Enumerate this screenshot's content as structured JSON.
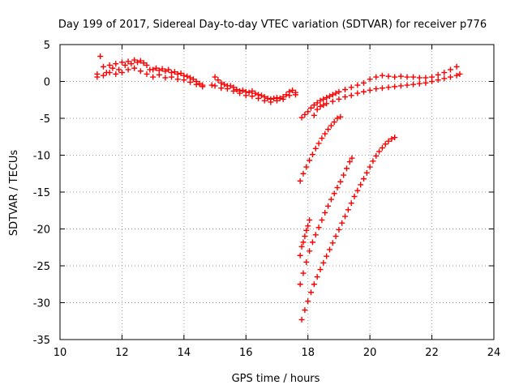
{
  "chart_data": {
    "type": "scatter",
    "title": "Day 199 of 2017, Sidereal Day-to-day VTEC variation (SDTVAR) for receiver p776",
    "xlabel": "GPS time / hours",
    "ylabel": "SDTVAR / TECUs",
    "xlim": [
      10,
      24
    ],
    "ylim": [
      -35,
      5
    ],
    "xticks": [
      10,
      12,
      14,
      16,
      18,
      20,
      22,
      24
    ],
    "yticks": [
      5,
      0,
      -5,
      -10,
      -15,
      -20,
      -25,
      -30,
      -35
    ],
    "xtick_labels": [
      "10",
      "12",
      "14",
      "16",
      "18",
      "20",
      "22",
      "24"
    ],
    "ytick_labels": [
      "5",
      "0",
      "-5",
      "-10",
      "-15",
      "-20",
      "-25",
      "-30",
      "-35"
    ],
    "grid": true,
    "marker": "plus",
    "color": "#ff0000",
    "series": [
      {
        "points": [
          [
            11.2,
            1.0
          ],
          [
            11.3,
            3.4
          ],
          [
            11.4,
            2.0
          ],
          [
            11.5,
            1.2
          ],
          [
            11.6,
            2.2
          ],
          [
            11.7,
            1.8
          ],
          [
            11.8,
            2.4
          ],
          [
            11.9,
            1.6
          ],
          [
            12.0,
            2.6
          ],
          [
            12.1,
            2.2
          ],
          [
            12.2,
            2.7
          ],
          [
            12.3,
            2.4
          ],
          [
            12.4,
            2.9
          ],
          [
            12.5,
            2.6
          ],
          [
            12.6,
            2.8
          ],
          [
            12.7,
            2.5
          ],
          [
            12.8,
            2.2
          ],
          [
            12.9,
            1.6
          ],
          [
            13.0,
            1.6
          ],
          [
            13.1,
            1.8
          ],
          [
            13.2,
            1.5
          ],
          [
            13.3,
            1.7
          ],
          [
            13.4,
            1.4
          ],
          [
            13.5,
            1.6
          ],
          [
            13.6,
            1.2
          ],
          [
            13.7,
            1.3
          ],
          [
            13.8,
            1.0
          ],
          [
            13.9,
            1.1
          ],
          [
            14.0,
            0.8
          ],
          [
            14.1,
            0.7
          ],
          [
            14.2,
            0.5
          ],
          [
            14.3,
            0.3
          ],
          [
            14.4,
            0.0
          ],
          [
            14.5,
            -0.3
          ],
          [
            14.6,
            -0.5
          ]
        ]
      },
      {
        "points": [
          [
            11.2,
            0.6
          ],
          [
            11.4,
            0.8
          ],
          [
            11.6,
            1.2
          ],
          [
            11.8,
            1.0
          ],
          [
            12.0,
            1.2
          ],
          [
            12.2,
            1.6
          ],
          [
            12.4,
            1.8
          ],
          [
            12.6,
            1.4
          ],
          [
            12.8,
            1.0
          ],
          [
            13.0,
            0.6
          ],
          [
            13.2,
            0.9
          ],
          [
            13.4,
            0.5
          ],
          [
            13.6,
            0.6
          ],
          [
            13.8,
            0.3
          ],
          [
            14.0,
            0.2
          ],
          [
            14.2,
            -0.1
          ],
          [
            14.4,
            -0.4
          ],
          [
            14.6,
            -0.7
          ]
        ]
      },
      {
        "points": [
          [
            14.9,
            -0.5
          ],
          [
            15.0,
            0.6
          ],
          [
            15.1,
            0.2
          ],
          [
            15.2,
            -0.2
          ],
          [
            15.3,
            -0.4
          ],
          [
            15.4,
            -0.6
          ],
          [
            15.5,
            -0.6
          ],
          [
            15.6,
            -0.8
          ],
          [
            15.7,
            -1.1
          ],
          [
            15.8,
            -1.3
          ],
          [
            15.9,
            -1.2
          ],
          [
            16.0,
            -1.4
          ],
          [
            16.1,
            -1.5
          ],
          [
            16.2,
            -1.3
          ],
          [
            16.3,
            -1.6
          ],
          [
            16.4,
            -1.8
          ],
          [
            16.5,
            -1.9
          ],
          [
            16.6,
            -2.1
          ],
          [
            16.7,
            -2.3
          ],
          [
            16.8,
            -2.4
          ],
          [
            16.9,
            -2.3
          ],
          [
            17.0,
            -2.2
          ],
          [
            17.1,
            -2.3
          ],
          [
            17.2,
            -2.1
          ],
          [
            17.3,
            -1.8
          ],
          [
            17.4,
            -1.4
          ],
          [
            17.5,
            -1.2
          ],
          [
            17.6,
            -1.5
          ]
        ]
      },
      {
        "points": [
          [
            15.0,
            -0.6
          ],
          [
            15.2,
            -0.9
          ],
          [
            15.4,
            -1.0
          ],
          [
            15.6,
            -1.3
          ],
          [
            15.8,
            -1.6
          ],
          [
            16.0,
            -1.9
          ],
          [
            16.2,
            -2.0
          ],
          [
            16.4,
            -2.3
          ],
          [
            16.6,
            -2.6
          ],
          [
            16.8,
            -2.8
          ],
          [
            17.0,
            -2.6
          ],
          [
            17.2,
            -2.4
          ],
          [
            17.4,
            -1.9
          ],
          [
            17.6,
            -1.8
          ]
        ]
      },
      {
        "points": [
          [
            17.8,
            -4.9
          ],
          [
            17.9,
            -4.5
          ],
          [
            18.0,
            -4.1
          ],
          [
            18.1,
            -3.6
          ],
          [
            18.2,
            -3.2
          ],
          [
            18.3,
            -2.9
          ],
          [
            18.4,
            -2.6
          ],
          [
            18.5,
            -2.4
          ],
          [
            18.6,
            -2.2
          ],
          [
            18.7,
            -2.0
          ],
          [
            18.8,
            -1.8
          ],
          [
            18.9,
            -1.6
          ],
          [
            19.0,
            -1.4
          ],
          [
            19.2,
            -1.1
          ],
          [
            19.4,
            -0.8
          ],
          [
            19.6,
            -0.5
          ],
          [
            19.8,
            -0.2
          ],
          [
            20.0,
            0.3
          ],
          [
            20.2,
            0.6
          ],
          [
            20.4,
            0.8
          ],
          [
            20.6,
            0.7
          ],
          [
            20.8,
            0.6
          ],
          [
            21.0,
            0.7
          ],
          [
            21.2,
            0.6
          ],
          [
            21.4,
            0.6
          ],
          [
            21.6,
            0.5
          ],
          [
            21.8,
            0.5
          ],
          [
            22.0,
            0.6
          ],
          [
            22.2,
            0.9
          ],
          [
            22.4,
            1.2
          ],
          [
            22.6,
            1.6
          ],
          [
            22.8,
            2.0
          ]
        ]
      },
      {
        "points": [
          [
            18.2,
            -4.6
          ],
          [
            18.3,
            -3.8
          ],
          [
            18.4,
            -3.4
          ],
          [
            18.5,
            -3.2
          ],
          [
            18.6,
            -3.0
          ],
          [
            18.8,
            -2.7
          ],
          [
            19.0,
            -2.4
          ],
          [
            19.2,
            -2.1
          ],
          [
            19.4,
            -1.9
          ],
          [
            19.6,
            -1.6
          ],
          [
            19.8,
            -1.4
          ],
          [
            20.0,
            -1.2
          ],
          [
            20.2,
            -1.0
          ],
          [
            20.4,
            -0.9
          ],
          [
            20.6,
            -0.8
          ],
          [
            20.8,
            -0.7
          ],
          [
            21.0,
            -0.6
          ],
          [
            21.2,
            -0.5
          ],
          [
            21.4,
            -0.4
          ],
          [
            21.6,
            -0.3
          ],
          [
            21.8,
            -0.2
          ],
          [
            22.0,
            0.0
          ],
          [
            22.2,
            0.2
          ],
          [
            22.4,
            0.4
          ],
          [
            22.6,
            0.6
          ],
          [
            22.8,
            0.8
          ],
          [
            22.9,
            1.0
          ]
        ]
      },
      {
        "points": [
          [
            17.75,
            -13.5
          ],
          [
            17.85,
            -12.5
          ],
          [
            17.95,
            -11.6
          ],
          [
            18.05,
            -10.7
          ],
          [
            18.15,
            -9.9
          ],
          [
            18.25,
            -9.1
          ],
          [
            18.35,
            -8.4
          ],
          [
            18.45,
            -7.7
          ],
          [
            18.55,
            -7.1
          ],
          [
            18.65,
            -6.5
          ],
          [
            18.75,
            -6.0
          ],
          [
            18.85,
            -5.5
          ],
          [
            18.95,
            -5.0
          ],
          [
            19.05,
            -4.8
          ]
        ]
      },
      {
        "points": [
          [
            17.75,
            -27.5
          ],
          [
            17.85,
            -26.0
          ],
          [
            17.95,
            -24.5
          ],
          [
            18.05,
            -23.0
          ],
          [
            18.15,
            -21.8
          ],
          [
            18.25,
            -20.8
          ],
          [
            18.35,
            -19.8
          ],
          [
            18.45,
            -18.8
          ],
          [
            18.55,
            -17.8
          ],
          [
            18.65,
            -16.9
          ],
          [
            18.75,
            -16.0
          ],
          [
            18.85,
            -15.2
          ],
          [
            18.95,
            -14.4
          ],
          [
            19.05,
            -13.6
          ],
          [
            19.15,
            -12.7
          ],
          [
            19.25,
            -11.8
          ],
          [
            19.35,
            -10.9
          ],
          [
            19.42,
            -10.4
          ]
        ]
      },
      {
        "points": [
          [
            17.75,
            -23.6
          ],
          [
            17.8,
            -22.4
          ],
          [
            17.85,
            -21.8
          ],
          [
            17.9,
            -21.0
          ],
          [
            17.95,
            -20.2
          ],
          [
            18.0,
            -19.6
          ],
          [
            18.05,
            -18.8
          ]
        ]
      },
      {
        "points": [
          [
            17.8,
            -32.3
          ],
          [
            17.9,
            -31.0
          ],
          [
            18.0,
            -29.8
          ],
          [
            18.1,
            -28.6
          ],
          [
            18.2,
            -27.5
          ],
          [
            18.3,
            -26.5
          ],
          [
            18.4,
            -25.5
          ],
          [
            18.5,
            -24.6
          ],
          [
            18.6,
            -23.7
          ],
          [
            18.7,
            -22.8
          ],
          [
            18.8,
            -21.9
          ],
          [
            18.9,
            -21.0
          ],
          [
            19.0,
            -20.1
          ],
          [
            19.1,
            -19.2
          ],
          [
            19.2,
            -18.3
          ],
          [
            19.3,
            -17.4
          ],
          [
            19.4,
            -16.5
          ],
          [
            19.5,
            -15.6
          ],
          [
            19.6,
            -14.8
          ],
          [
            19.7,
            -14.0
          ],
          [
            19.8,
            -13.2
          ],
          [
            19.9,
            -12.4
          ],
          [
            20.0,
            -11.6
          ],
          [
            20.1,
            -10.8
          ],
          [
            20.2,
            -10.1
          ],
          [
            20.3,
            -9.5
          ],
          [
            20.4,
            -9.0
          ],
          [
            20.5,
            -8.5
          ],
          [
            20.6,
            -8.1
          ],
          [
            20.7,
            -7.8
          ],
          [
            20.8,
            -7.6
          ]
        ]
      }
    ]
  }
}
